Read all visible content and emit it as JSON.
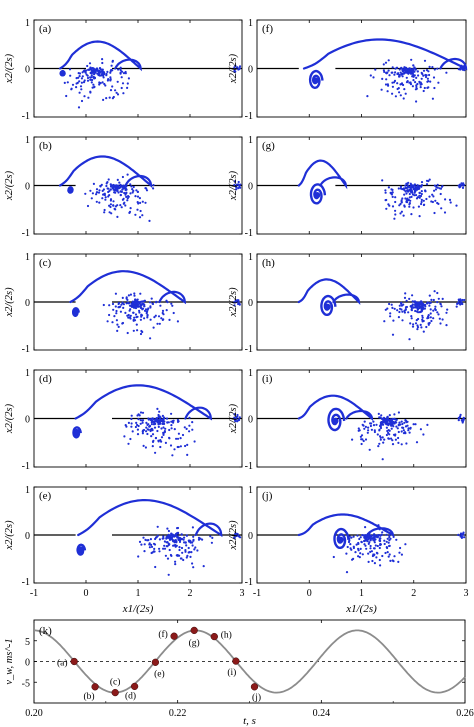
{
  "panels_common": {
    "x_ticks": [
      "-1",
      "0",
      "1",
      "2",
      "3"
    ],
    "y_ticks": [
      "1",
      "0",
      "-1"
    ],
    "xlabel": "x1/(2s)",
    "ylabel": "x2/(2s)",
    "wall_color": "#000000",
    "vortex_color": "#1f2fd6"
  },
  "chart_data": [
    {
      "type": "scatter",
      "label": "(a)",
      "xlim": [
        -1,
        3
      ],
      "ylim": [
        -1,
        1
      ],
      "wall": [
        [
          -1,
          0
        ],
        [
          0,
          0
        ],
        [
          0.5,
          0
        ],
        [
          3,
          0
        ]
      ]
    },
    {
      "type": "scatter",
      "label": "(b)",
      "xlim": [
        -1,
        3
      ],
      "ylim": [
        -1,
        1
      ],
      "wall": [
        [
          -1,
          0
        ],
        [
          -0.2,
          0
        ],
        [
          0.5,
          0
        ],
        [
          3,
          0
        ]
      ]
    },
    {
      "type": "scatter",
      "label": "(c)",
      "xlim": [
        -1,
        3
      ],
      "ylim": [
        -1,
        1
      ],
      "wall": [
        [
          -1,
          0
        ],
        [
          -0.2,
          0
        ],
        [
          0.5,
          0
        ],
        [
          3,
          0
        ]
      ]
    },
    {
      "type": "scatter",
      "label": "(d)",
      "xlim": [
        -1,
        3
      ],
      "ylim": [
        -1,
        1
      ],
      "wall": [
        [
          -1,
          0
        ],
        [
          -0.2,
          0
        ],
        [
          0.5,
          0
        ],
        [
          3,
          0
        ]
      ]
    },
    {
      "type": "scatter",
      "label": "(e)",
      "xlim": [
        -1,
        3
      ],
      "ylim": [
        -1,
        1
      ],
      "wall": [
        [
          -1,
          0
        ],
        [
          -0.2,
          0
        ],
        [
          0.5,
          0
        ],
        [
          3,
          0
        ]
      ]
    },
    {
      "type": "scatter",
      "label": "(f)",
      "xlim": [
        -1,
        3
      ],
      "ylim": [
        -1,
        1
      ],
      "wall": [
        [
          -1,
          0
        ],
        [
          -0.2,
          0
        ],
        [
          0.5,
          0
        ],
        [
          3,
          0
        ]
      ]
    },
    {
      "type": "scatter",
      "label": "(g)",
      "xlim": [
        -1,
        3
      ],
      "ylim": [
        -1,
        1
      ],
      "wall": [
        [
          -1,
          0
        ],
        [
          -0.2,
          0
        ],
        [
          0.5,
          0
        ],
        [
          3,
          0
        ]
      ]
    },
    {
      "type": "scatter",
      "label": "(h)",
      "xlim": [
        -1,
        3
      ],
      "ylim": [
        -1,
        1
      ],
      "wall": [
        [
          -1,
          0
        ],
        [
          -0.2,
          0
        ],
        [
          0.5,
          0
        ],
        [
          3,
          0
        ]
      ]
    },
    {
      "type": "scatter",
      "label": "(i)",
      "xlim": [
        -1,
        3
      ],
      "ylim": [
        -1,
        1
      ],
      "wall": [
        [
          -1,
          0
        ],
        [
          -0.2,
          0
        ],
        [
          0.5,
          0
        ],
        [
          3,
          0
        ]
      ]
    },
    {
      "type": "scatter",
      "label": "(j)",
      "xlim": [
        -1,
        3
      ],
      "ylim": [
        -1,
        1
      ],
      "wall": [
        [
          -1,
          0
        ],
        [
          -0.2,
          0
        ],
        [
          0.5,
          0
        ],
        [
          3,
          0
        ]
      ]
    },
    {
      "type": "line",
      "label": "(k)",
      "xlabel": "t, s",
      "ylabel": "v_w, ms^-1",
      "xlim": [
        0.2,
        0.26
      ],
      "ylim": [
        -10,
        10
      ],
      "x_ticks": [
        "0.20",
        "0.22",
        "0.24",
        "0.26"
      ],
      "y_ticks": [
        "5",
        "0",
        "-5"
      ],
      "series": {
        "amplitude": 7.5,
        "period": 0.0225,
        "peak_time": 0.2225,
        "x_start": 0.2,
        "x_end": 0.26,
        "color": "#8c8c8c"
      },
      "zero_line": 0,
      "markers": [
        {
          "label": "(a)",
          "t": 0.2056,
          "v": 0.0
        },
        {
          "label": "(b)",
          "t": 0.2085,
          "v": -6.1
        },
        {
          "label": "(c)",
          "t": 0.2113,
          "v": -7.5
        },
        {
          "label": "(d)",
          "t": 0.214,
          "v": -6.0
        },
        {
          "label": "(e)",
          "t": 0.2169,
          "v": -0.2
        },
        {
          "label": "(f)",
          "t": 0.2195,
          "v": 6.1
        },
        {
          "label": "(g)",
          "t": 0.2223,
          "v": 7.5
        },
        {
          "label": "(h)",
          "t": 0.2251,
          "v": 6.0
        },
        {
          "label": "(i)",
          "t": 0.2281,
          "v": 0.1
        },
        {
          "label": "(j)",
          "t": 0.2307,
          "v": -6.1
        }
      ],
      "marker_color": "#8b1a1a"
    }
  ]
}
